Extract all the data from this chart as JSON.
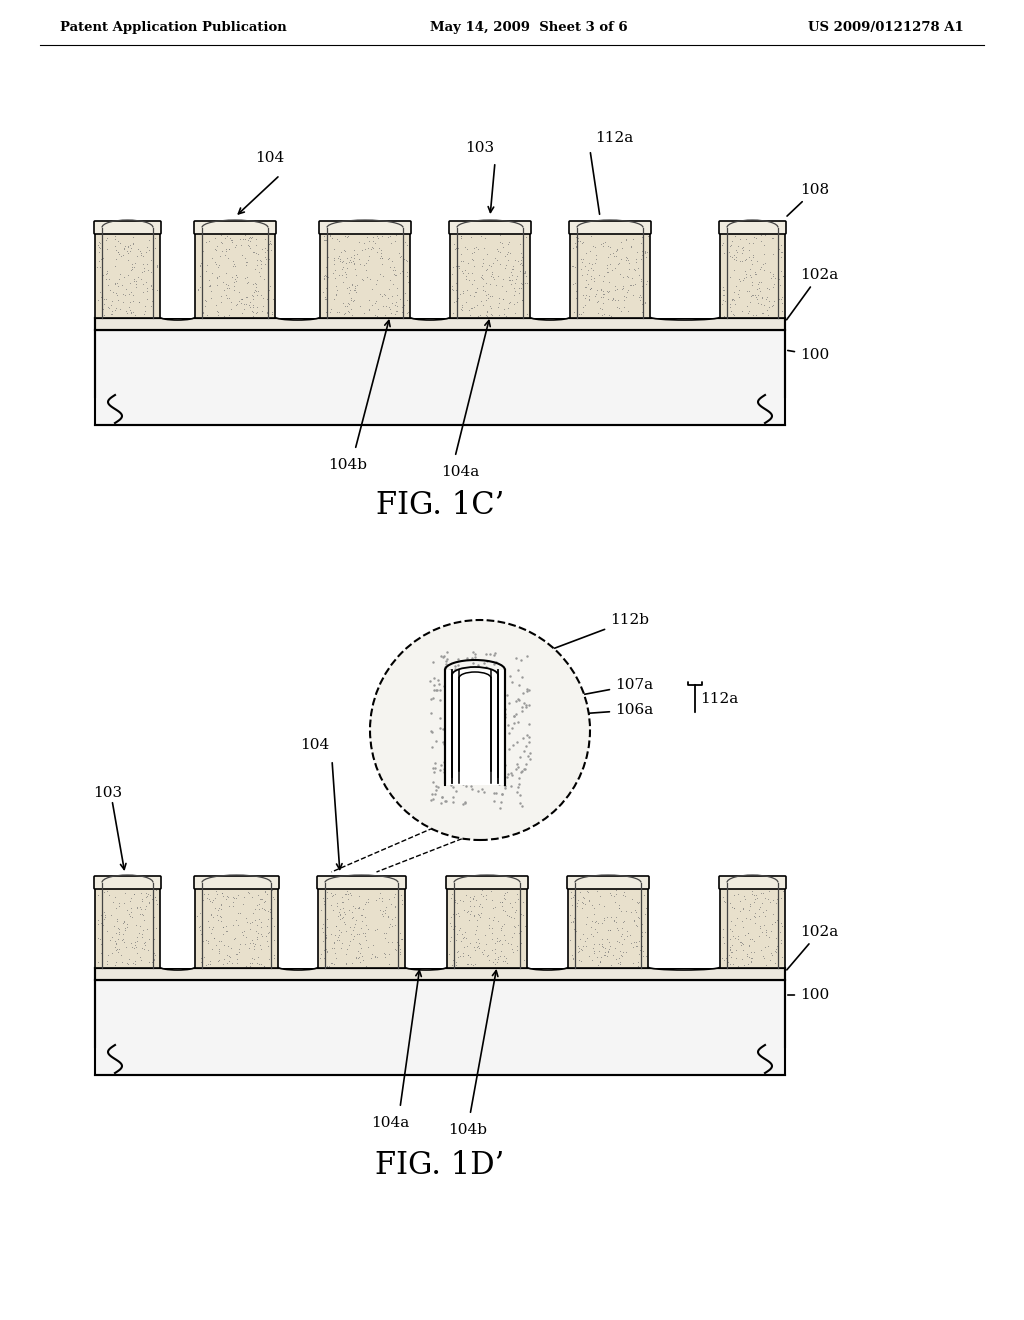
{
  "bg_color": "#ffffff",
  "header_left": "Patent Application Publication",
  "header_center": "May 14, 2009  Sheet 3 of 6",
  "header_right": "US 2009/0121278 A1",
  "fig1c_label": "FIG. 1C’",
  "fig1d_label": "FIG. 1D’",
  "line_color": "#000000",
  "stipple_color": "#888888",
  "substrate_fill": "#f5f5f5",
  "fin_fill": "#e8e0cc",
  "cap_fill": "#f0ece0"
}
